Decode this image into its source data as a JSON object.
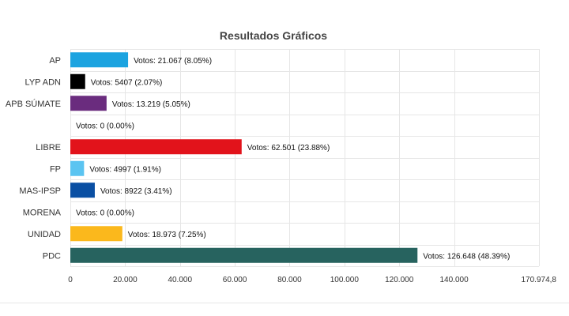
{
  "chart_data": {
    "type": "bar",
    "orientation": "horizontal",
    "title": "Resultados Gráficos",
    "categories": [
      "AP",
      "LYP ADN",
      "APB SÚMATE",
      "",
      "LIBRE",
      "FP",
      "MAS-IPSP",
      "MORENA",
      "UNIDAD",
      "PDC"
    ],
    "values": [
      21067,
      5407,
      13219,
      0,
      62501,
      4997,
      8922,
      0,
      18973,
      126648
    ],
    "labels": [
      "Votos: 21.067 (8.05%)",
      "Votos: 5407 (2.07%)",
      "Votos: 13.219 (5.05%)",
      "Votos: 0 (0.00%)",
      "Votos: 62.501 (23.88%)",
      "Votos: 4997 (1.91%)",
      "Votos: 8922 (3.41%)",
      "Votos: 0 (0.00%)",
      "Votos: 18.973 (7.25%)",
      "Votos: 126.648 (48.39%)"
    ],
    "colors": [
      "#1ba3e0",
      "#000000",
      "#6a2c7e",
      "#999999",
      "#e2131b",
      "#5bc4f1",
      "#0a4fa3",
      "#666666",
      "#fbb81c",
      "#27635f"
    ],
    "xlim": [
      0,
      170974.8
    ],
    "xticks": [
      0,
      20000,
      40000,
      60000,
      80000,
      100000,
      120000,
      140000,
      170974.8
    ],
    "xtick_labels": [
      "0",
      "20.000",
      "40.000",
      "60.000",
      "80.000",
      "100.000",
      "120.000",
      "140.000",
      "170.974,8"
    ],
    "grid": true,
    "legend": "none"
  }
}
